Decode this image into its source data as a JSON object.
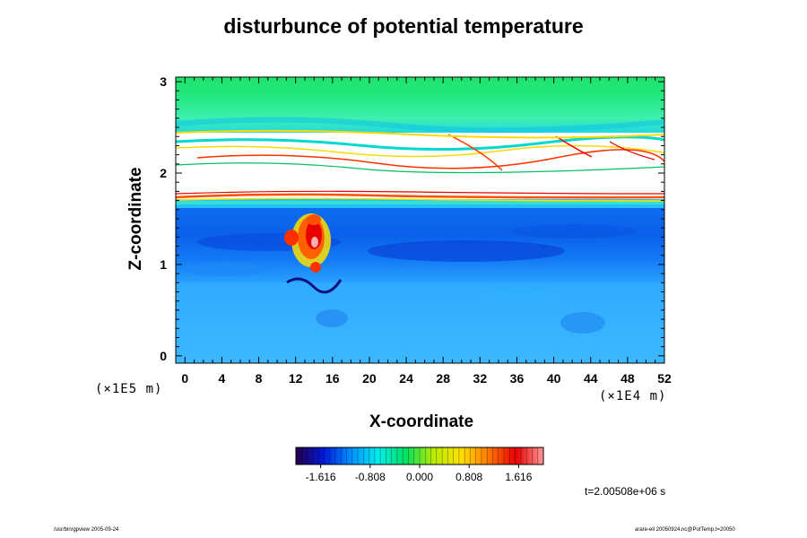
{
  "chart_data": {
    "type": "heatmap",
    "title": "disturbunce of potential temperature",
    "xlabel": "X-coordinate",
    "ylabel": "Z-coordinate",
    "x_scale_note": "(×1E4 m)",
    "z_scale_note": "(×1E5 m)",
    "xlim": [
      -1,
      52
    ],
    "ylim": [
      -0.08,
      3.05
    ],
    "x_ticks": [
      "0",
      "4",
      "8",
      "12",
      "16",
      "20",
      "24",
      "28",
      "32",
      "36",
      "40",
      "44",
      "48",
      "52"
    ],
    "y_ticks": [
      "0",
      "1",
      "2",
      "3"
    ],
    "colorbar": {
      "ticks": [
        "-1.616",
        "-0.808",
        "0.000",
        "0.808",
        "1.616"
      ],
      "colormap": "rainbow",
      "colors": [
        "#24004a",
        "#0018d8",
        "#0090ff",
        "#00ecec",
        "#00e060",
        "#b8ec00",
        "#ffe000",
        "#ff7800",
        "#e80000",
        "#ff9898"
      ]
    },
    "regions": [
      {
        "z_range": [
          2.78,
          3.05
        ],
        "value_desc": "green",
        "value": 0.2
      },
      {
        "z_range": [
          2.45,
          2.78
        ],
        "value_desc": "cyan-green",
        "value": -0.1
      },
      {
        "z_range": [
          1.95,
          2.45
        ],
        "value_desc": "white (out of range) with colored bands"
      },
      {
        "z_range": [
          1.6,
          1.95
        ],
        "value_desc": "white band with red/yellow edge"
      },
      {
        "z_range": [
          0.95,
          1.6
        ],
        "value_desc": "blue",
        "value": -1.1
      },
      {
        "z_range": [
          -0.08,
          0.95
        ],
        "value_desc": "light blue",
        "value": -0.6
      },
      {
        "center_x": 13.5,
        "center_z": 1.3,
        "value_desc": "warm plume",
        "value": 1.4
      }
    ]
  },
  "timestamp": "t=2.00508e+06 s",
  "footer_left": "/usr/bin/gpview 2005-09-24",
  "footer_right": "arare-ell 20050924.nc@PotTemp,t=20050"
}
